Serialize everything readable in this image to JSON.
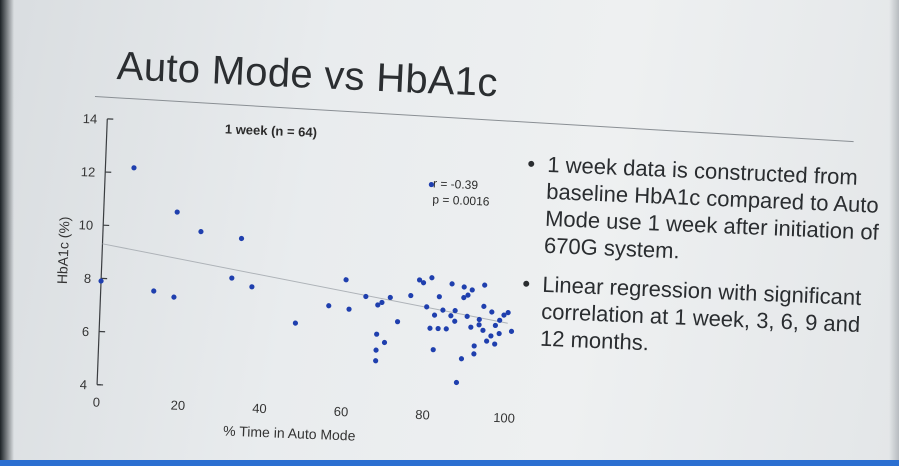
{
  "slide": {
    "title": "Auto Mode vs HbA1c",
    "bullets": [
      "1 week data is constructed from baseline HbA1c compared to Auto Mode use 1 week after initiation of 670G system.",
      "Linear regression with significant correlation at 1 week, 3, 6, 9 and 12 months."
    ]
  },
  "chart_data": {
    "type": "scatter",
    "title": "1 week (n = 64)",
    "xlabel": "% Time in Auto Mode",
    "ylabel": "HbA1c (%)",
    "xlim": [
      0,
      100
    ],
    "ylim": [
      4,
      14
    ],
    "xticks": [
      0,
      20,
      40,
      60,
      80,
      100
    ],
    "yticks": [
      4,
      6,
      8,
      10,
      12,
      14
    ],
    "annotations": [
      "r = -0.39",
      "p = 0.0016"
    ],
    "grid": false,
    "marker_color": "#1f3fae",
    "trend_line_color": "#aeb3b8",
    "trend_line": {
      "x": [
        0,
        100
      ],
      "y": [
        9.3,
        6.9
      ]
    },
    "points": [
      {
        "x": 0,
        "y": 7.9
      },
      {
        "x": 7,
        "y": 12.2
      },
      {
        "x": 13,
        "y": 7.6
      },
      {
        "x": 18,
        "y": 10.6
      },
      {
        "x": 18,
        "y": 7.4
      },
      {
        "x": 24,
        "y": 9.9
      },
      {
        "x": 32,
        "y": 8.2
      },
      {
        "x": 34,
        "y": 9.7
      },
      {
        "x": 37,
        "y": 7.9
      },
      {
        "x": 48,
        "y": 6.6
      },
      {
        "x": 56,
        "y": 7.3
      },
      {
        "x": 60,
        "y": 8.3
      },
      {
        "x": 61,
        "y": 7.2
      },
      {
        "x": 65,
        "y": 7.7
      },
      {
        "x": 68,
        "y": 7.4
      },
      {
        "x": 68,
        "y": 6.3
      },
      {
        "x": 68,
        "y": 5.7
      },
      {
        "x": 68,
        "y": 5.3
      },
      {
        "x": 69,
        "y": 7.5
      },
      {
        "x": 70,
        "y": 6.0
      },
      {
        "x": 71,
        "y": 7.7
      },
      {
        "x": 73,
        "y": 6.8
      },
      {
        "x": 76,
        "y": 7.8
      },
      {
        "x": 78,
        "y": 8.4
      },
      {
        "x": 79,
        "y": 8.3
      },
      {
        "x": 80,
        "y": 12.0
      },
      {
        "x": 80,
        "y": 7.4
      },
      {
        "x": 81,
        "y": 6.6
      },
      {
        "x": 81,
        "y": 8.5
      },
      {
        "x": 82,
        "y": 7.1
      },
      {
        "x": 82,
        "y": 5.8
      },
      {
        "x": 83,
        "y": 7.8
      },
      {
        "x": 83,
        "y": 6.6
      },
      {
        "x": 84,
        "y": 7.3
      },
      {
        "x": 85,
        "y": 6.6
      },
      {
        "x": 86,
        "y": 7.1
      },
      {
        "x": 86,
        "y": 8.3
      },
      {
        "x": 87,
        "y": 7.3
      },
      {
        "x": 87,
        "y": 6.9
      },
      {
        "x": 88,
        "y": 4.6
      },
      {
        "x": 89,
        "y": 8.2
      },
      {
        "x": 89,
        "y": 7.8
      },
      {
        "x": 89,
        "y": 5.5
      },
      {
        "x": 90,
        "y": 7.9
      },
      {
        "x": 90,
        "y": 7.1
      },
      {
        "x": 91,
        "y": 6.7
      },
      {
        "x": 91,
        "y": 8.1
      },
      {
        "x": 92,
        "y": 5.7
      },
      {
        "x": 92,
        "y": 6.0
      },
      {
        "x": 93,
        "y": 7.0
      },
      {
        "x": 93,
        "y": 6.8
      },
      {
        "x": 94,
        "y": 8.3
      },
      {
        "x": 94,
        "y": 7.5
      },
      {
        "x": 94,
        "y": 6.6
      },
      {
        "x": 95,
        "y": 6.2
      },
      {
        "x": 96,
        "y": 7.3
      },
      {
        "x": 96,
        "y": 6.4
      },
      {
        "x": 97,
        "y": 6.8
      },
      {
        "x": 97,
        "y": 6.1
      },
      {
        "x": 98,
        "y": 7.0
      },
      {
        "x": 98,
        "y": 6.5
      },
      {
        "x": 99,
        "y": 7.2
      },
      {
        "x": 100,
        "y": 7.3
      },
      {
        "x": 101,
        "y": 6.6
      }
    ]
  }
}
